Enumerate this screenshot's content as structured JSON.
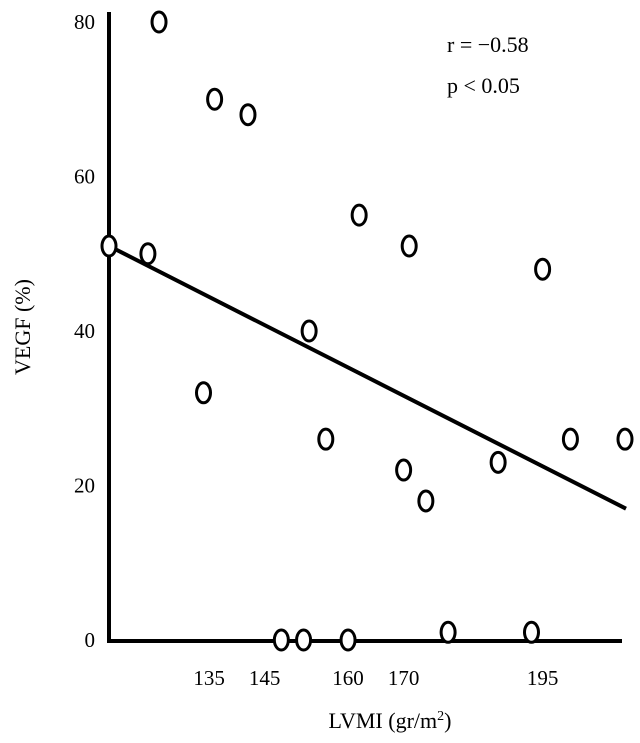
{
  "chart_data": {
    "type": "scatter",
    "title": "",
    "xlabel": "LVMI (gr/m",
    "xlabel_sup": "2",
    "xlabel_close": ")",
    "ylabel": "VEGF (%)",
    "ylim": [
      0,
      80
    ],
    "yticks": [
      "0",
      "20",
      "40",
      "60",
      "80"
    ],
    "xticks": [
      {
        "label": "135",
        "value": 135
      },
      {
        "label": "145",
        "value": 145
      },
      {
        "label": "160",
        "value": 160
      },
      {
        "label": "170",
        "value": 170
      },
      {
        "label": "195",
        "value": 195
      }
    ],
    "xlim": [
      117,
      210
    ],
    "points": [
      {
        "x": 117,
        "y": 51
      },
      {
        "x": 124,
        "y": 50
      },
      {
        "x": 126,
        "y": 80
      },
      {
        "x": 134,
        "y": 32
      },
      {
        "x": 136,
        "y": 70
      },
      {
        "x": 142,
        "y": 68
      },
      {
        "x": 148,
        "y": 0
      },
      {
        "x": 152,
        "y": 0
      },
      {
        "x": 153,
        "y": 40
      },
      {
        "x": 156,
        "y": 26
      },
      {
        "x": 160,
        "y": 0
      },
      {
        "x": 162,
        "y": 55
      },
      {
        "x": 170,
        "y": 22
      },
      {
        "x": 171,
        "y": 51
      },
      {
        "x": 174,
        "y": 18
      },
      {
        "x": 178,
        "y": 1
      },
      {
        "x": 187,
        "y": 23
      },
      {
        "x": 193,
        "y": 1
      },
      {
        "x": 195,
        "y": 48
      },
      {
        "x": 200,
        "y": 26
      },
      {
        "x": 210,
        "y": 26
      }
    ],
    "trendline": {
      "x1": 117,
      "y1": 51,
      "x2": 210,
      "y2": 17
    },
    "annotations": [
      "r = −0.58",
      "p < 0.05"
    ]
  }
}
